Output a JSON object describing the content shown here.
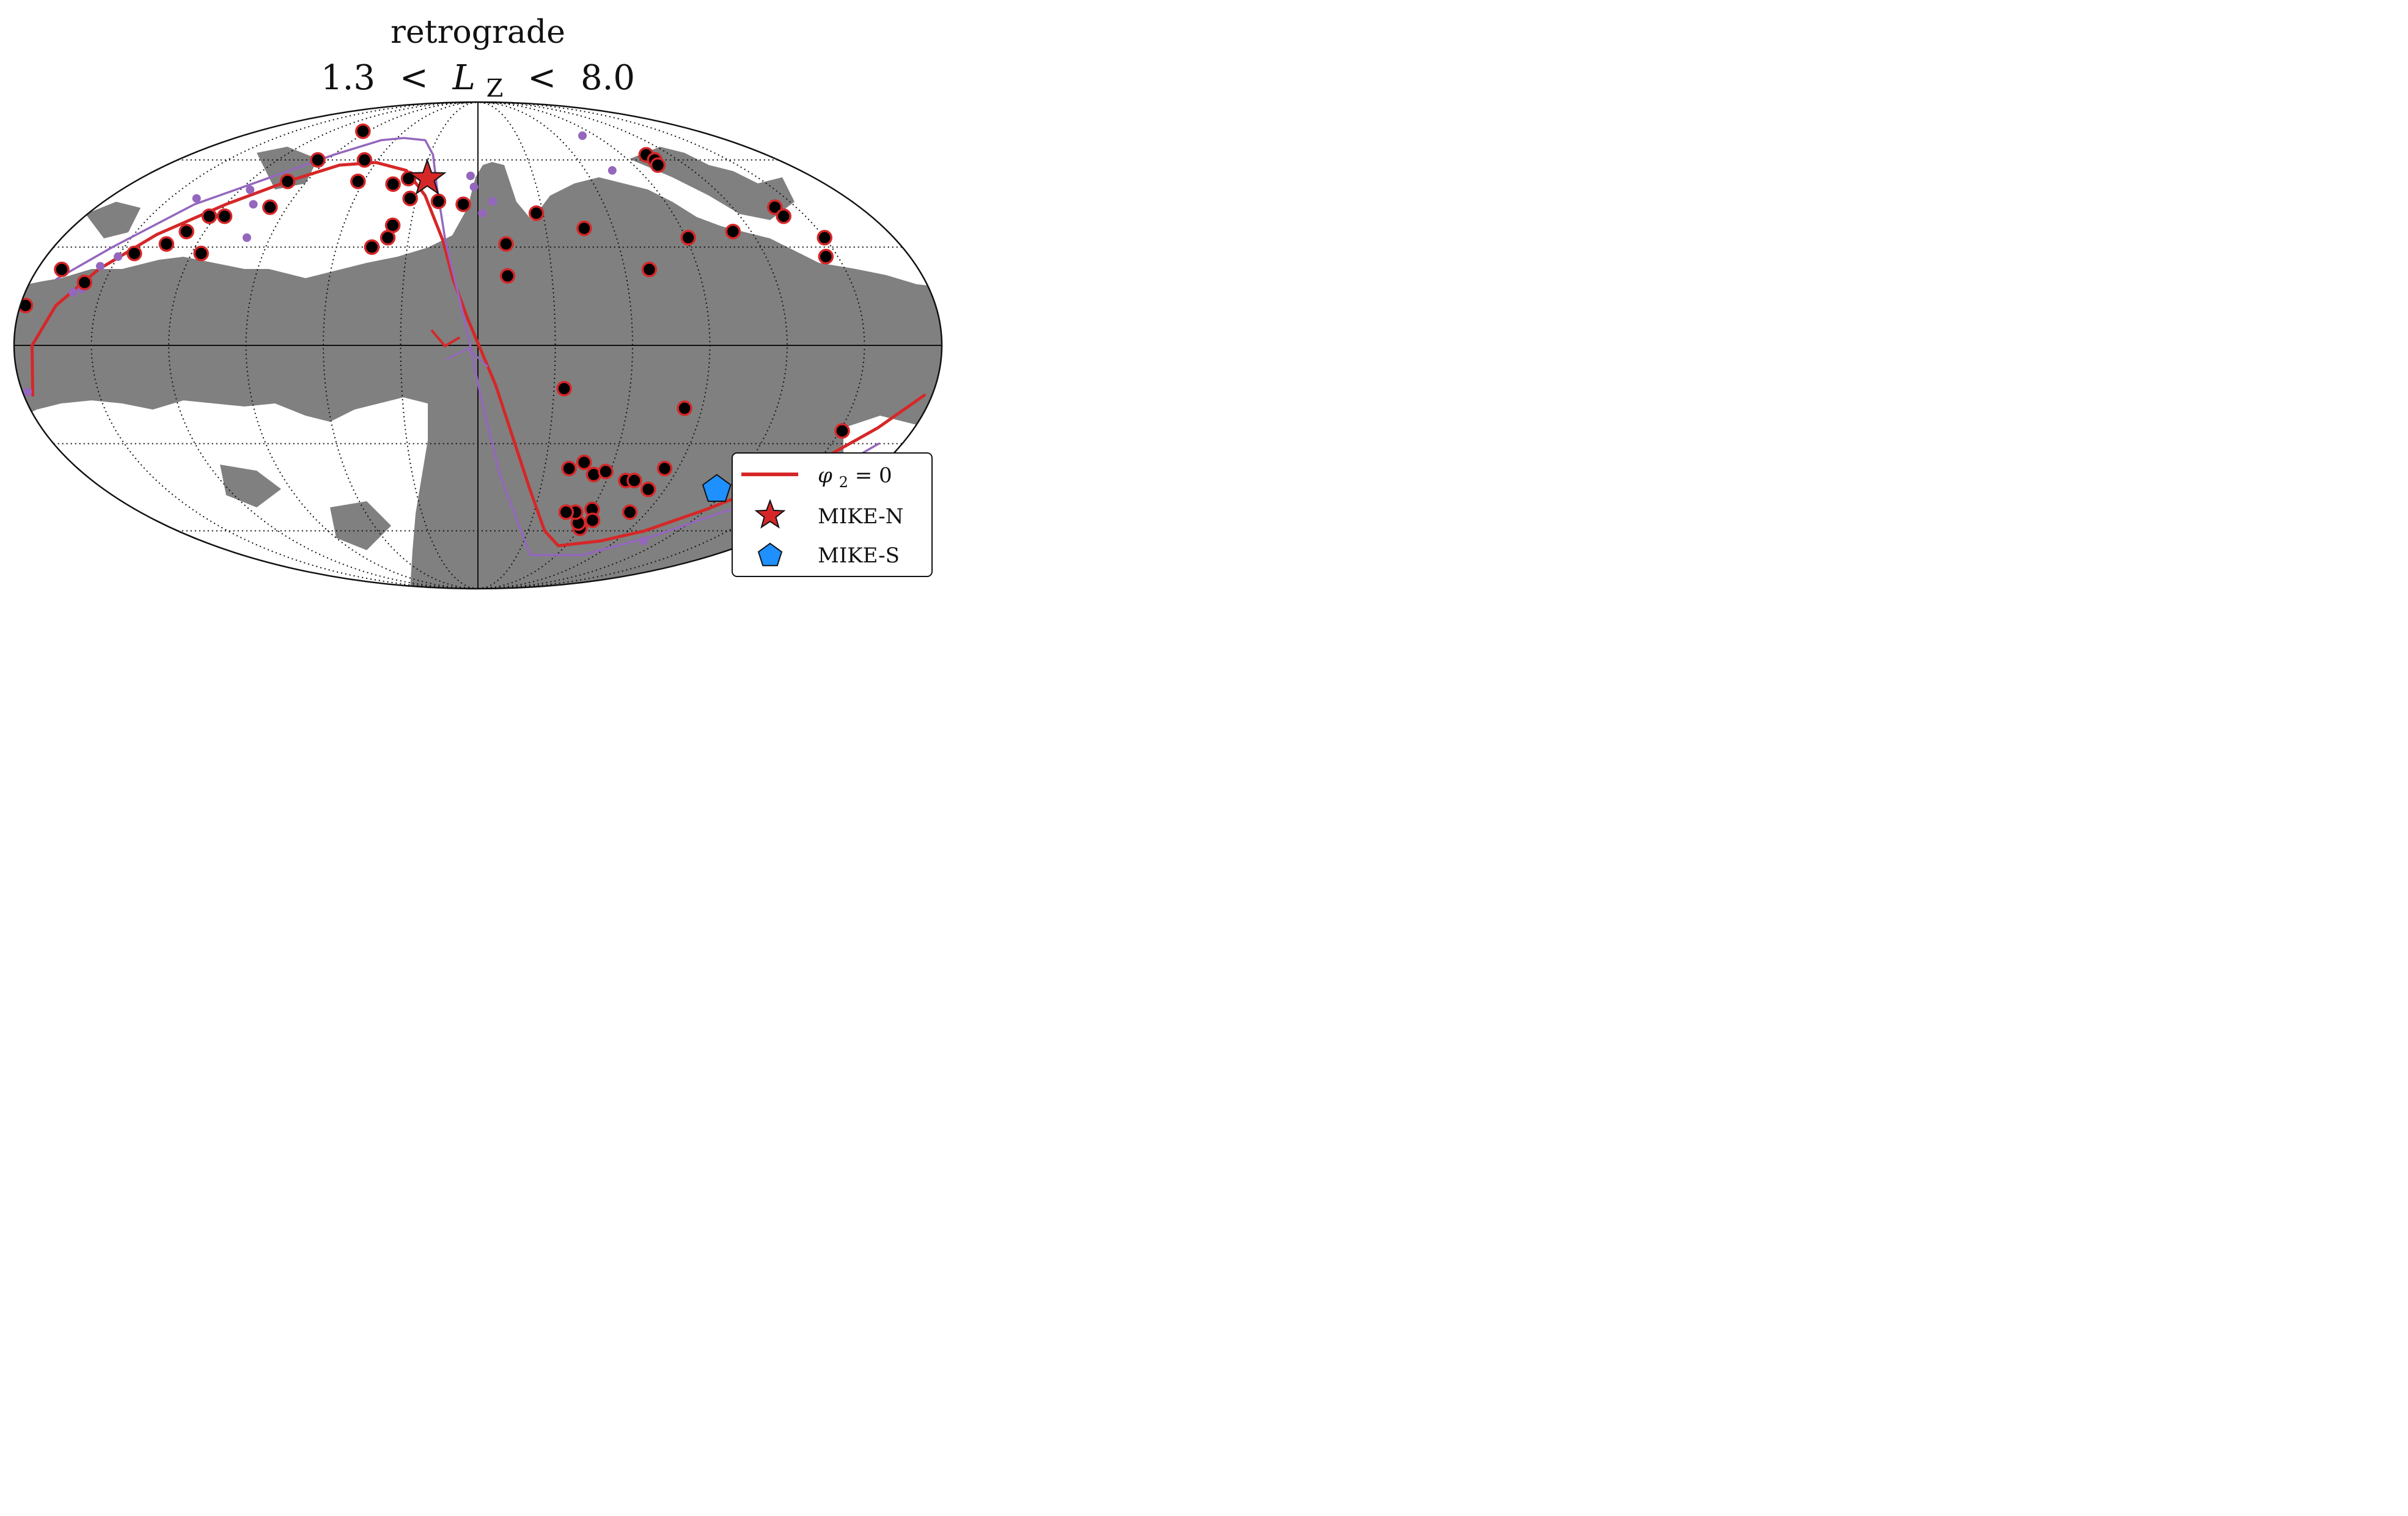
{
  "title": {
    "line1": "retrograde",
    "line2_lower": "1.3",
    "line2_lt1": "<",
    "line2_var": "L",
    "line2_sub": "Z",
    "line2_lt2": "<",
    "line2_upper": "8.0"
  },
  "legend": {
    "items": [
      {
        "label": "φ₂ = 0",
        "label_var": "φ",
        "label_sub": "2",
        "label_rest": " = 0",
        "marker": "line",
        "color": "#d62728"
      },
      {
        "label": "MIKE-N",
        "marker": "star",
        "color": "#d62728"
      },
      {
        "label": "MIKE-S",
        "marker": "pentagon",
        "color": "#1e90ff"
      }
    ]
  },
  "chart_data": {
    "type": "scatter",
    "projection": "mollweide",
    "grid": true,
    "legend_position": "lower-right",
    "xlim": [
      -180,
      180
    ],
    "ylim": [
      -90,
      90
    ],
    "colors": {
      "background_fill": "#808080",
      "footprint": "#ffffff",
      "member_fill": "#000000",
      "member_edge": "#d62728",
      "track_red": "#d62728",
      "track_purple": "#9467bd",
      "mike_n": "#d62728",
      "mike_s": "#1e90ff"
    },
    "series": [
      {
        "name": "members",
        "points": [
          [
            -105,
            62
          ],
          [
            -106,
            60
          ],
          [
            -104,
            58
          ],
          [
            -140,
            43
          ],
          [
            -140,
            40
          ],
          [
            -150,
            33
          ],
          [
            -145,
            27
          ],
          [
            -112,
            35
          ],
          [
            -91,
            33
          ],
          [
            -70,
            23
          ],
          [
            -47,
            36
          ],
          [
            -12,
            21
          ],
          [
            -12,
            31
          ],
          [
            -27,
            41
          ],
          [
            19,
            45
          ],
          [
            7,
            44
          ],
          [
            37,
            53
          ],
          [
            33,
            46
          ],
          [
            44,
            51
          ],
          [
            38,
            37
          ],
          [
            39,
            33
          ],
          [
            45,
            30
          ],
          [
            68,
            60
          ],
          [
            94,
            72
          ],
          [
            63,
            52
          ],
          [
            96,
            60
          ],
          [
            100,
            52
          ],
          [
            98,
            43
          ],
          [
            123,
            40
          ],
          [
            116,
            40
          ],
          [
            128,
            35
          ],
          [
            133,
            31
          ],
          [
            116,
            28
          ],
          [
            144,
            28
          ],
          [
            158,
            19
          ],
          [
            170,
            23
          ],
          [
            178,
            12
          ],
          [
            -83,
            -19
          ],
          [
            -151,
            -26
          ],
          [
            -81,
            -53
          ],
          [
            -82,
            -45
          ],
          [
            -60,
            -59
          ],
          [
            -57,
            -57
          ],
          [
            -60,
            -52
          ],
          [
            -84,
            -38
          ],
          [
            -128,
            -37
          ],
          [
            -137,
            -44
          ],
          [
            -52,
            -53
          ],
          [
            -47,
            -53
          ],
          [
            -69,
            -42
          ],
          [
            -73,
            -42
          ],
          [
            -64,
            -56
          ],
          [
            -53,
            -40
          ],
          [
            -58,
            -39
          ],
          [
            -41,
            -38
          ],
          [
            -47,
            -36
          ],
          [
            -34,
            -13
          ]
        ]
      },
      {
        "name": "other_stars",
        "points": [
          [
            -80,
            70
          ],
          [
            -75,
            56
          ],
          [
            4,
            54
          ],
          [
            2,
            50
          ],
          [
            -7,
            45
          ],
          [
            -2,
            41
          ],
          [
            100,
            33
          ],
          [
            155,
            24
          ],
          [
            150,
            27
          ],
          [
            158,
            17
          ],
          [
            161,
            16
          ],
          [
            115,
            49
          ],
          [
            107,
            44
          ],
          [
            137,
            46
          ],
          [
            178,
            -14
          ],
          [
            -148,
            -50
          ],
          [
            -150,
            -53
          ],
          [
            -157,
            -55
          ],
          [
            -153,
            -55
          ],
          [
            -164,
            -40
          ],
          [
            -168,
            -45
          ],
          [
            -155,
            -49
          ],
          [
            -108,
            -64
          ]
        ]
      },
      {
        "name": "track_red",
        "points": [
          [
            176.5,
            -15
          ],
          [
            173,
            0
          ],
          [
            166,
            12
          ],
          [
            155,
            23
          ],
          [
            140,
            34
          ],
          [
            120,
            44
          ],
          [
            100,
            52
          ],
          [
            80,
            58
          ],
          [
            60,
            59
          ],
          [
            40,
            56
          ],
          [
            26,
            47
          ],
          [
            15,
            32
          ],
          [
            10,
            20
          ],
          [
            4,
            8
          ],
          [
            -7,
            -12
          ],
          [
            -25,
            -45
          ],
          [
            -40,
            -60
          ],
          [
            -55,
            -66
          ],
          [
            -80,
            -64
          ],
          [
            -100,
            -60
          ],
          [
            -120,
            -52
          ],
          [
            -145,
            -40
          ],
          [
            -165,
            -25
          ],
          [
            -177,
            -15
          ]
        ]
      },
      {
        "name": "track_purple",
        "points": [
          [
            170,
            20
          ],
          [
            155,
            30
          ],
          [
            135,
            44
          ],
          [
            110,
            54
          ],
          [
            90,
            62
          ],
          [
            70,
            68
          ],
          [
            55,
            69
          ],
          [
            38,
            68
          ],
          [
            28,
            62
          ],
          [
            21,
            50
          ],
          [
            14,
            32
          ],
          [
            8,
            16
          ],
          [
            3,
            0
          ],
          [
            -1,
            -15
          ],
          [
            -10,
            -40
          ],
          [
            -40,
            -70
          ],
          [
            -80,
            -70
          ],
          [
            -110,
            -62
          ],
          [
            -130,
            -53
          ],
          [
            -155,
            -45
          ],
          [
            -170,
            -30
          ]
        ]
      }
    ],
    "mike_n": [
      27,
      53
    ],
    "mike_s": [
      -115,
      -45
    ]
  }
}
